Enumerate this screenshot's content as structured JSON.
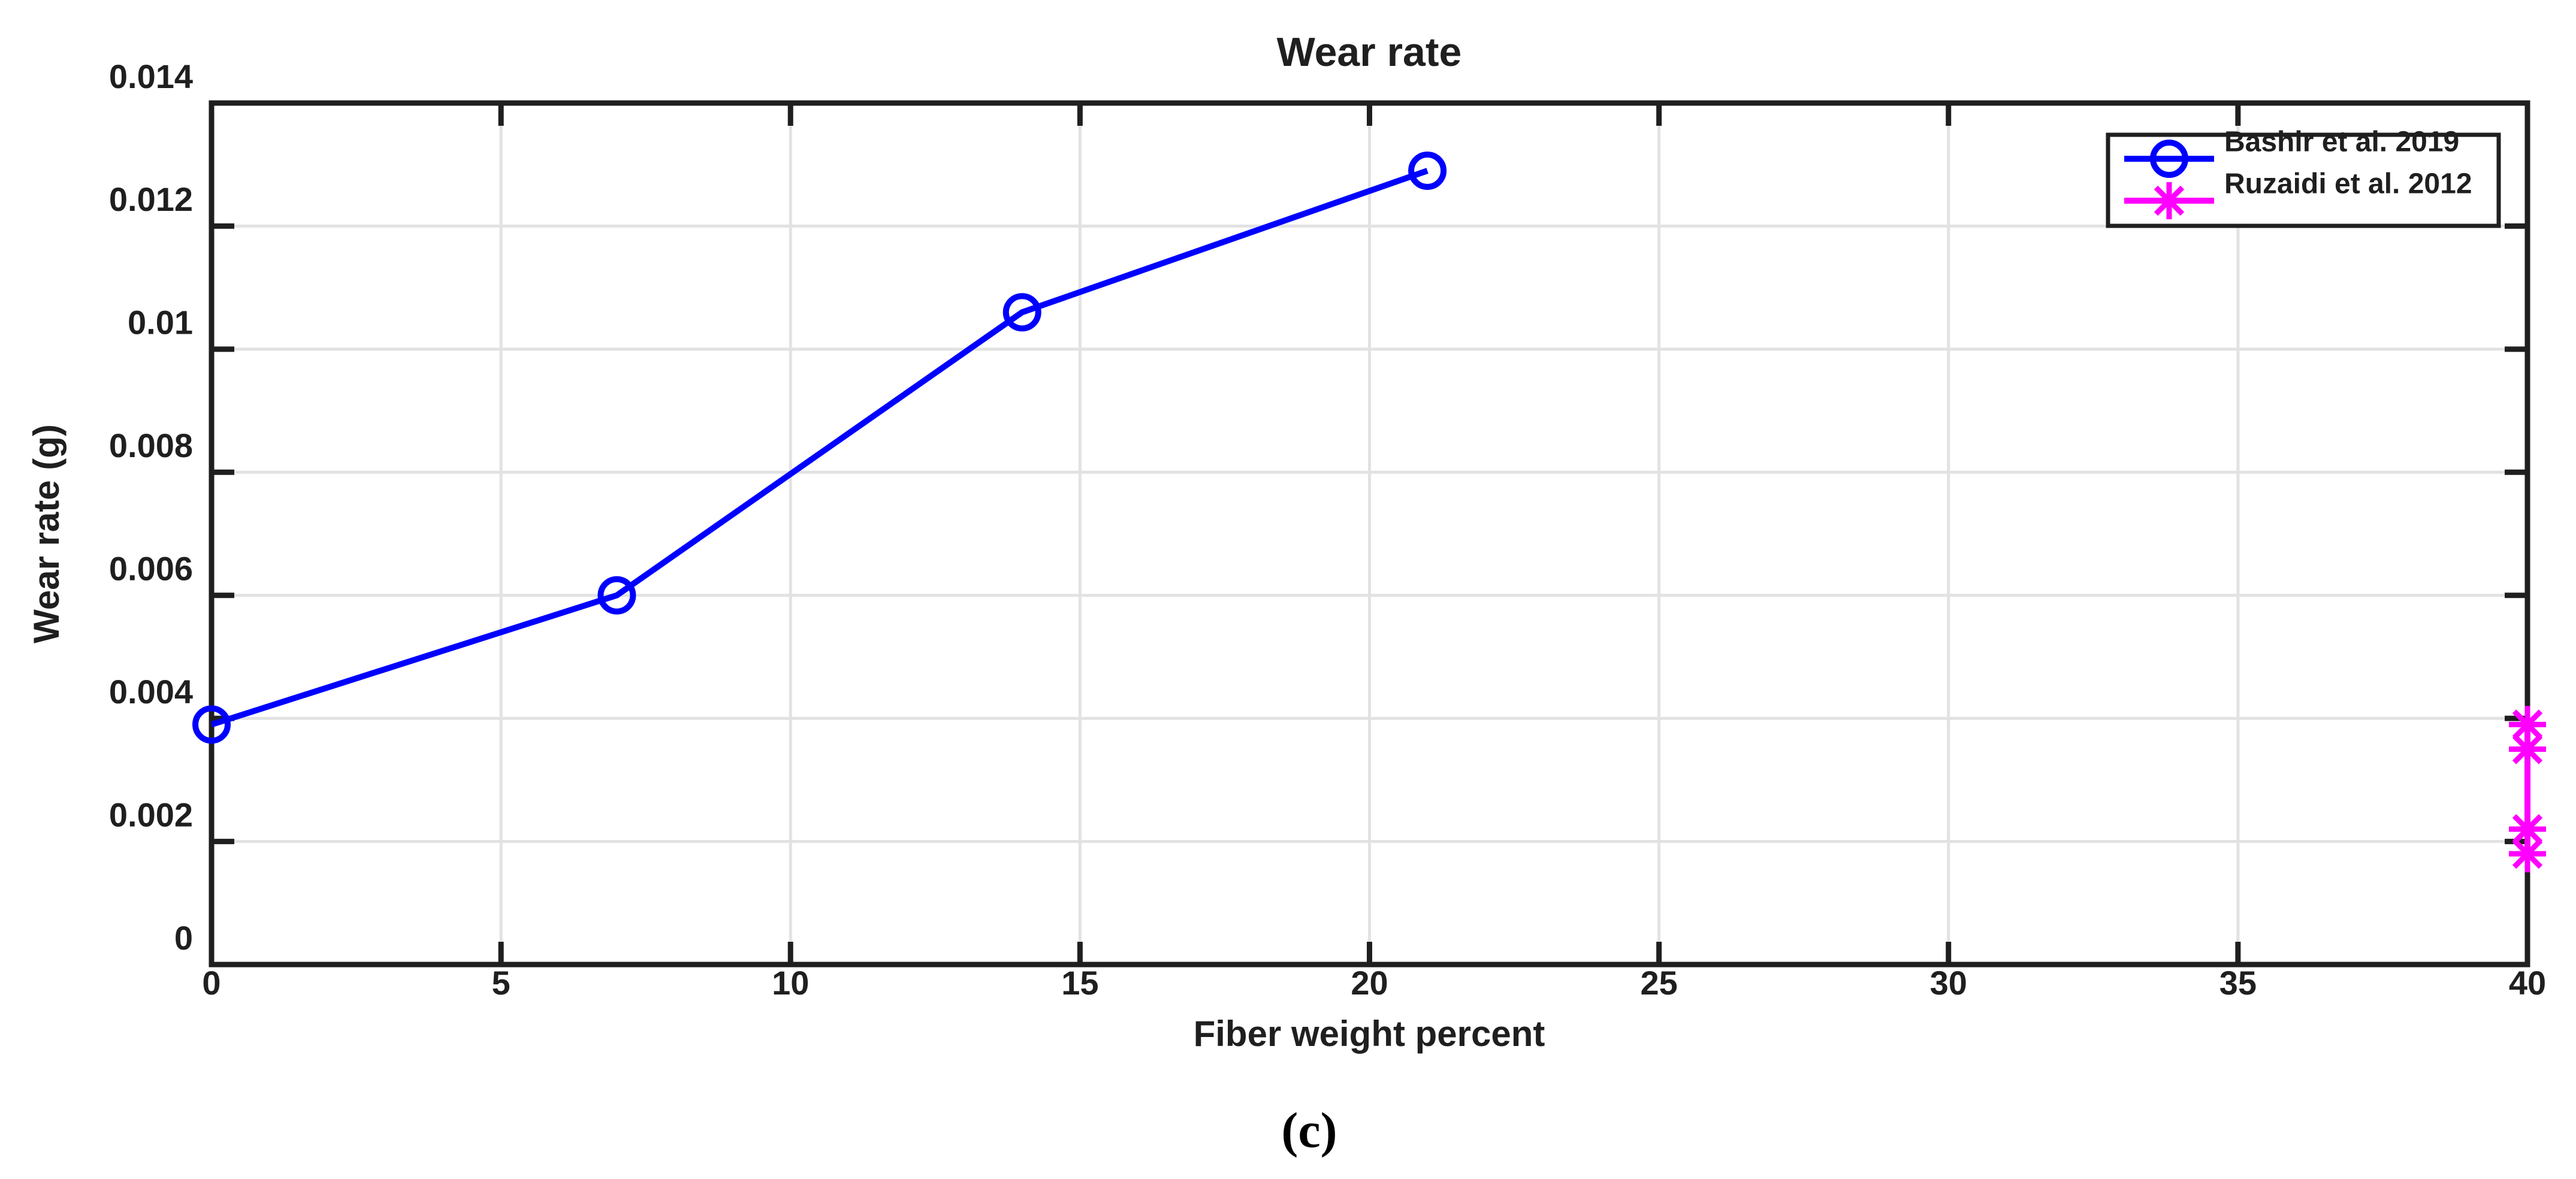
{
  "figure": {
    "title": "Wear rate",
    "xlabel": "Fiber weight percent",
    "ylabel": "Wear rate (g)",
    "caption": "(c)"
  },
  "axes": {
    "xlim": [
      0,
      40
    ],
    "ylim": [
      0,
      0.014
    ],
    "xticks": [
      0,
      5,
      10,
      15,
      20,
      25,
      30,
      35,
      40
    ],
    "xtick_labels": [
      "0",
      "5",
      "10",
      "15",
      "20",
      "25",
      "30",
      "35",
      "40"
    ],
    "yticks": [
      0,
      0.002,
      0.004,
      0.006,
      0.008,
      0.01,
      0.012,
      0.014
    ],
    "ytick_labels": [
      "0",
      "0.002",
      "0.004",
      "0.006",
      "0.008",
      "0.01",
      "0.012",
      "0.014"
    ],
    "grid": true
  },
  "legend": {
    "position": "top-right"
  },
  "colors": {
    "background": "#ffffff",
    "axis": "#1f1f1f",
    "grid": "#e2e2e2",
    "text": "#1f1f1f",
    "series_blue": "#0000ff",
    "series_magenta": "#ff00ff"
  },
  "chart_data": {
    "type": "line",
    "title": "Wear rate",
    "xlabel": "Fiber weight percent",
    "ylabel": "Wear rate (g)",
    "xlim": [
      0,
      40
    ],
    "ylim": [
      0,
      0.014
    ],
    "grid": "on",
    "legend_position": "top-right",
    "series": [
      {
        "name": "Bashir et al. 2019",
        "color": "#0000ff",
        "marker": "circle",
        "line_style": "solid",
        "x": [
          0,
          7,
          14,
          21
        ],
        "y": [
          0.0039,
          0.006,
          0.0106,
          0.0129
        ]
      },
      {
        "name": "Ruzaidi et al. 2012",
        "color": "#ff00ff",
        "marker": "asterisk",
        "line_style": "solid",
        "x": [
          40,
          40,
          40,
          40
        ],
        "y": [
          0.0039,
          0.0035,
          0.0022,
          0.0018
        ]
      }
    ]
  }
}
